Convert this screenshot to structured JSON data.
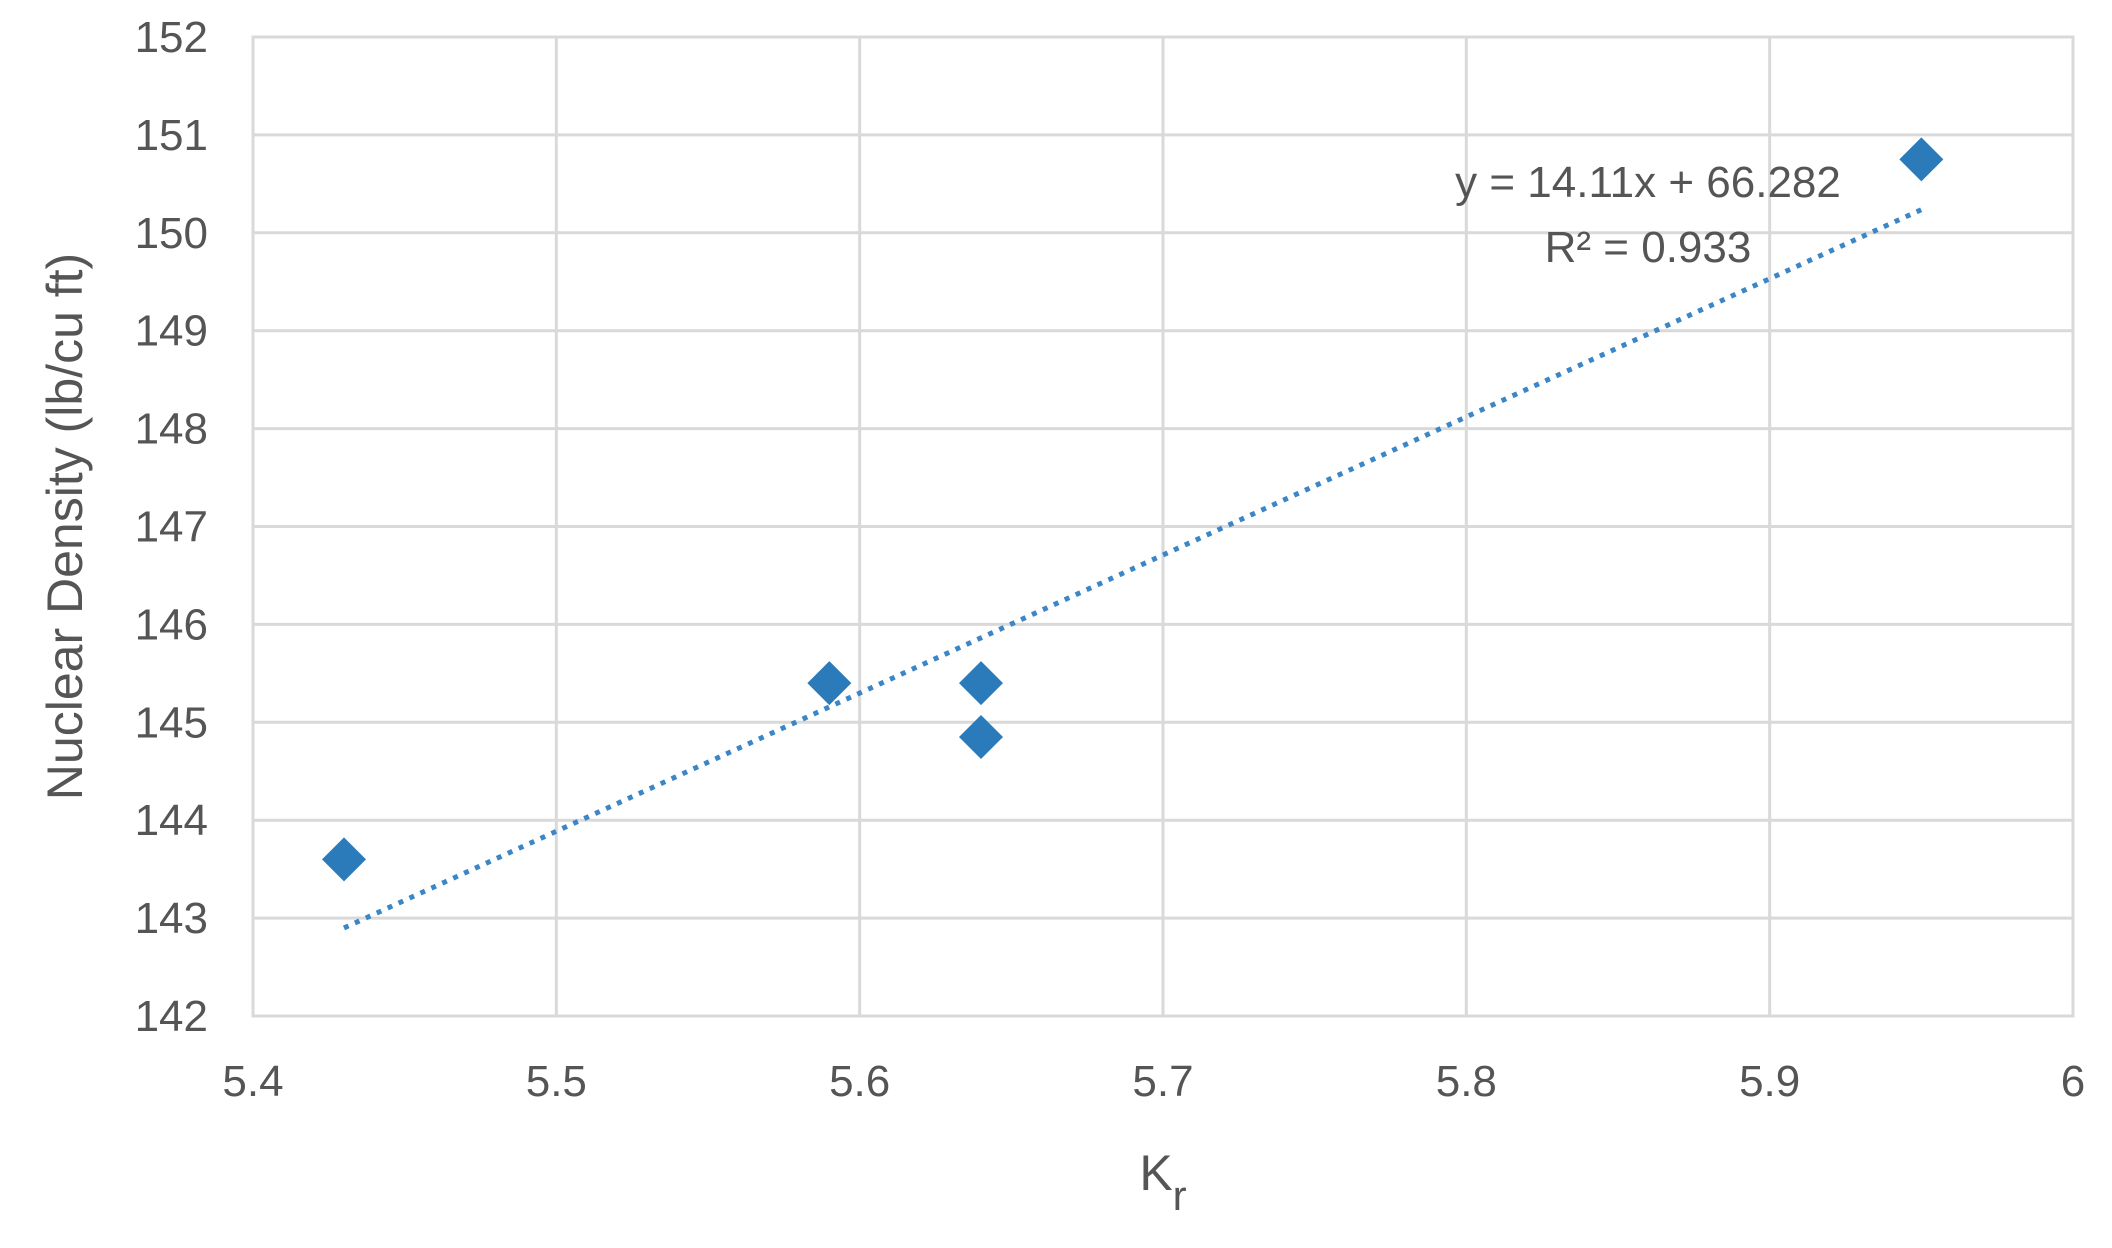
{
  "chart_data": {
    "type": "scatter",
    "title": "",
    "xlabel_main": "K",
    "xlabel_sub": "r",
    "ylabel": "Nuclear Density (lb/cu ft)",
    "xlim": [
      5.4,
      6.0
    ],
    "ylim": [
      142,
      152
    ],
    "x_ticks": [
      5.4,
      5.5,
      5.6,
      5.7,
      5.8,
      5.9,
      6.0
    ],
    "x_tick_labels": [
      "5.4",
      "5.5",
      "5.6",
      "5.7",
      "5.8",
      "5.9",
      "6"
    ],
    "y_ticks": [
      142,
      143,
      144,
      145,
      146,
      147,
      148,
      149,
      150,
      151,
      152
    ],
    "y_tick_labels": [
      "142",
      "143",
      "144",
      "145",
      "146",
      "147",
      "148",
      "149",
      "150",
      "151",
      "152"
    ],
    "grid": true,
    "legend": "none",
    "series": [
      {
        "marker": "diamond",
        "color": "#2b7bba",
        "points": [
          {
            "x": 5.43,
            "y": 143.6
          },
          {
            "x": 5.59,
            "y": 145.4
          },
          {
            "x": 5.64,
            "y": 145.4
          },
          {
            "x": 5.64,
            "y": 144.85
          },
          {
            "x": 5.95,
            "y": 150.75
          }
        ]
      }
    ],
    "trendline": {
      "type": "linear",
      "style": "dotted",
      "color": "#3b86c6",
      "slope": 14.11,
      "intercept": 66.282,
      "x_range": [
        5.43,
        5.95
      ],
      "equation_label": "y = 14.11x + 66.282",
      "r2_label": "R² = 0.933"
    },
    "colors": {
      "grid": "#d9d9d9",
      "text": "#555555"
    }
  }
}
